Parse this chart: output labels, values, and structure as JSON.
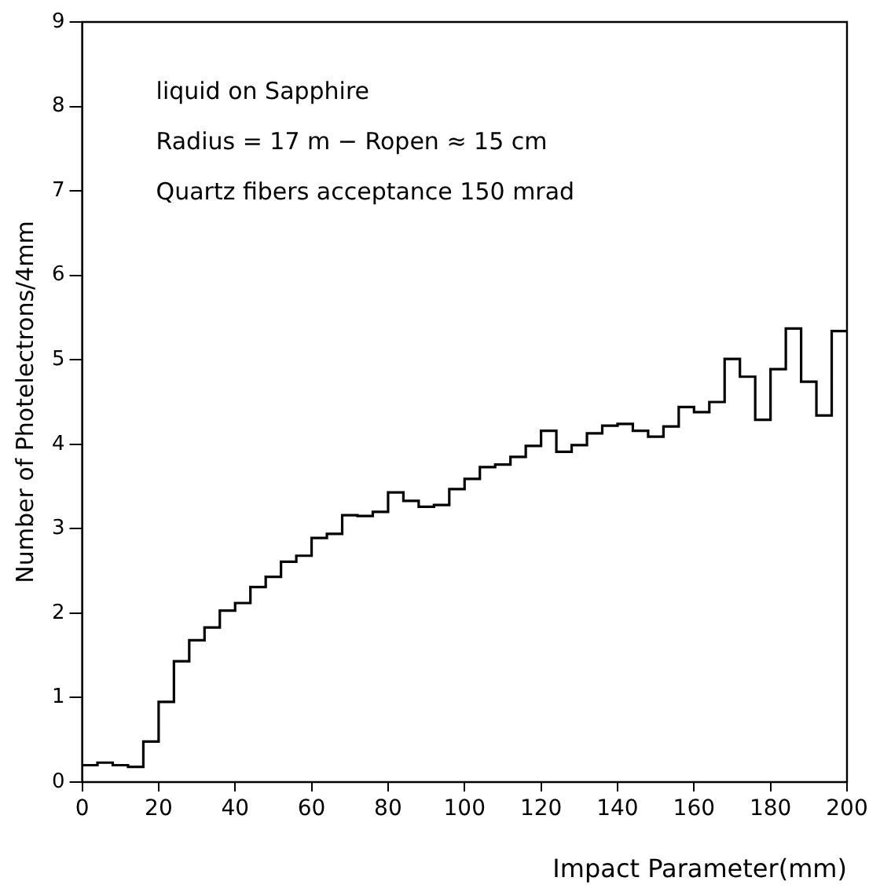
{
  "chart_data": {
    "type": "histogram",
    "xlabel": "Impact Parameter(mm)",
    "ylabel": "Number of Photelectrons/4mm",
    "annotations": [
      "liquid on Sapphire",
      "Radius = 17 m − Ropen ≈ 15 cm",
      "Quartz fibers acceptance 150 mrad"
    ],
    "bins": [
      0,
      4,
      8,
      12,
      16,
      20,
      24,
      28,
      32,
      36,
      40,
      44,
      48,
      52,
      56,
      60,
      64,
      68,
      72,
      76,
      80,
      84,
      88,
      92,
      96,
      100,
      104,
      108,
      112,
      116,
      120,
      124,
      128,
      132,
      136,
      140,
      144,
      148,
      152,
      156,
      160,
      164,
      168,
      172,
      176,
      180,
      184,
      188,
      192,
      196,
      200
    ],
    "values": [
      0.2,
      0.23,
      0.2,
      0.18,
      0.48,
      0.95,
      1.43,
      1.68,
      1.83,
      2.03,
      2.12,
      2.31,
      2.43,
      2.61,
      2.68,
      2.89,
      2.94,
      3.16,
      3.15,
      3.2,
      3.43,
      3.33,
      3.26,
      3.28,
      3.47,
      3.59,
      3.73,
      3.76,
      3.85,
      3.98,
      4.16,
      3.91,
      3.99,
      4.13,
      4.22,
      4.24,
      4.16,
      4.09,
      4.21,
      4.44,
      4.38,
      4.5,
      5.01,
      4.8,
      4.29,
      4.89,
      5.37,
      4.74,
      4.34,
      5.34
    ],
    "color": "#000000",
    "xlim": [
      0,
      200
    ],
    "xticks": [
      0,
      20,
      40,
      60,
      80,
      100,
      120,
      140,
      160,
      180,
      200
    ],
    "ylim": [
      0,
      9
    ],
    "yticks": [
      0,
      1,
      2,
      3,
      4,
      5,
      6,
      7,
      8,
      9
    ],
    "grid": false,
    "legend": false
  }
}
